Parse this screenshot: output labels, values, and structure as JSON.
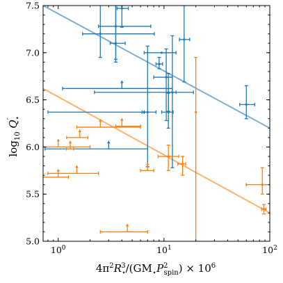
{
  "chart_data": {
    "type": "scatter",
    "xscale": "log",
    "xlim": [
      0.72,
      100
    ],
    "ylim": [
      5.0,
      7.5
    ],
    "grid": false,
    "xlabel_parts": {
      "pre": "4π",
      "sup1": "2",
      "r": "R",
      "sub_r": "⋆",
      "sup_r": "3",
      "mid": "/(GM",
      "sub_m": "⋆",
      "p": "P",
      "sup_p": "2",
      "sub_p": "spin",
      "post": ") × 10",
      "sup_exp": "6"
    },
    "ylabel_parts": {
      "pre": "log",
      "sub": "10",
      "q": " Q",
      "prime": "′",
      "star": "⋆"
    },
    "x_ticks": [
      {
        "value": 1,
        "base": "10",
        "exp": "0"
      },
      {
        "value": 10,
        "base": "10",
        "exp": "1"
      },
      {
        "value": 100,
        "base": "10",
        "exp": "2"
      }
    ],
    "y_ticks": [
      {
        "value": 5.0,
        "label": "5.0"
      },
      {
        "value": 5.5,
        "label": "5.5"
      },
      {
        "value": 6.0,
        "label": "6.0"
      },
      {
        "value": 6.5,
        "label": "6.5"
      },
      {
        "value": 7.0,
        "label": "7.0"
      },
      {
        "value": 7.5,
        "label": "7.5"
      }
    ],
    "series": [
      {
        "color": "#1f77b4",
        "fit": {
          "x": [
            0.72,
            100
          ],
          "y": [
            7.5,
            6.2
          ],
          "color": "#7eaed3"
        },
        "points": [
          {
            "x": 2.5,
            "y": 7.2,
            "xerr": [
              0.8,
              5.6
            ],
            "yerr": [
              0.25,
              0.35
            ]
          },
          {
            "x": 3.5,
            "y": 7.28,
            "xerr": [
              1.1,
              4.0
            ],
            "yerr": [
              0.35,
              0.25
            ]
          },
          {
            "x": 3.5,
            "y": 7.1,
            "xerr": [
              0.4,
              0.8
            ],
            "yerr": [
              0.2,
              0.4
            ]
          },
          {
            "x": 4.0,
            "y": 7.47,
            "xerr": [
              0.4,
              0.6
            ],
            "yerr": [
              0.2,
              0.03
            ]
          },
          {
            "x": 9.5,
            "y": 7.0,
            "xerr": [
              3.0,
              3.5
            ],
            "yerr": [
              0.0,
              0.0
            ]
          },
          {
            "x": 9.0,
            "y": 6.88,
            "xerr": [
              0.6,
              0.7
            ],
            "yerr": [
              0.05,
              0.07
            ]
          },
          {
            "x": 15.5,
            "y": 7.14,
            "xerr": [
              1.5,
              2.0
            ],
            "yerr": [
              0.45,
              0.36
            ]
          },
          {
            "x": 10.5,
            "y": 6.74,
            "xerr": [
              2.5,
              1.5
            ],
            "yerr": [
              0.46,
              0.3
            ]
          },
          {
            "x": 11.0,
            "y": 6.58,
            "xerr": [
              8.8,
              8.0
            ],
            "yerr": [
              0.2,
              0.2
            ]
          },
          {
            "x": 12.0,
            "y": 6.58,
            "xerr": [
              1.0,
              1.0
            ],
            "yerr": [
              0.8,
              0.6
            ]
          },
          {
            "x": 7.0,
            "y": 6.37,
            "xerr": [
              0.8,
              1.4
            ],
            "yerr": [
              0.58,
              0.7
            ]
          },
          {
            "x": 6.5,
            "y": 6.37,
            "xerr": [
              5.7,
              0
            ],
            "yerr": [
              0,
              0
            ]
          },
          {
            "x": 11.0,
            "y": 6.37,
            "xerr": [
              1.5,
              1.2
            ],
            "yerr": [
              0.17,
              0.2
            ]
          },
          {
            "x": 60.0,
            "y": 6.45,
            "xerr": [
              8.0,
              12.0
            ],
            "yerr": [
              0.15,
              0.2
            ]
          }
        ],
        "lower_limits": [
          {
            "x": 4.0,
            "y": 6.62,
            "xerr": [
              2.9,
              8.0
            ]
          },
          {
            "x": 3.0,
            "y": 5.98,
            "xerr": [
              2.25,
              4.0
            ]
          }
        ]
      },
      {
        "color": "#ff7f0e",
        "fit": {
          "x": [
            0.72,
            100
          ],
          "y": [
            6.62,
            5.3
          ],
          "color": "#ffb26b"
        },
        "points": [
          {
            "x": 20.0,
            "y": 6.37,
            "xerr": [
              0,
              0
            ],
            "yerr": [
              1.47,
              0.58
            ]
          },
          {
            "x": 11.0,
            "y": 5.9,
            "xerr": [
              2.2,
              2.8
            ],
            "yerr": [
              0.15,
              0.12
            ]
          },
          {
            "x": 15.0,
            "y": 5.82,
            "xerr": [
              1.5,
              1.0
            ],
            "yerr": [
              0.12,
              0.08
            ]
          },
          {
            "x": 85.0,
            "y": 5.6,
            "xerr": [
              25.0,
              15.0
            ],
            "yerr": [
              0.1,
              0.18
            ]
          },
          {
            "x": 88.0,
            "y": 5.34,
            "xerr": [
              4.0,
              4.0
            ],
            "yerr": [
              0.05,
              0.05
            ]
          }
        ],
        "lower_limits": [
          {
            "x": 2.5,
            "y": 6.21,
            "xerr": [
              1.0,
              3.5
            ]
          },
          {
            "x": 4.0,
            "y": 6.22,
            "xerr": [
              0.5,
              2.0
            ]
          },
          {
            "x": 1.6,
            "y": 6.1,
            "xerr": [
              0.4,
              0.3
            ]
          },
          {
            "x": 1.0,
            "y": 6.0,
            "xerr": [
              0.28,
              1.0
            ]
          },
          {
            "x": 1.3,
            "y": 5.98,
            "xerr": [
              0.1,
              0.1
            ]
          },
          {
            "x": 1.5,
            "y": 5.72,
            "xerr": [
              0.7,
              0.9
            ]
          },
          {
            "x": 1.0,
            "y": 5.68,
            "xerr": [
              0.28,
              0.25
            ]
          },
          {
            "x": 7.0,
            "y": 5.75,
            "xerr": [
              1.0,
              1.0
            ]
          },
          {
            "x": 4.5,
            "y": 5.1,
            "xerr": [
              2.0,
              2.5
            ]
          }
        ]
      }
    ]
  }
}
